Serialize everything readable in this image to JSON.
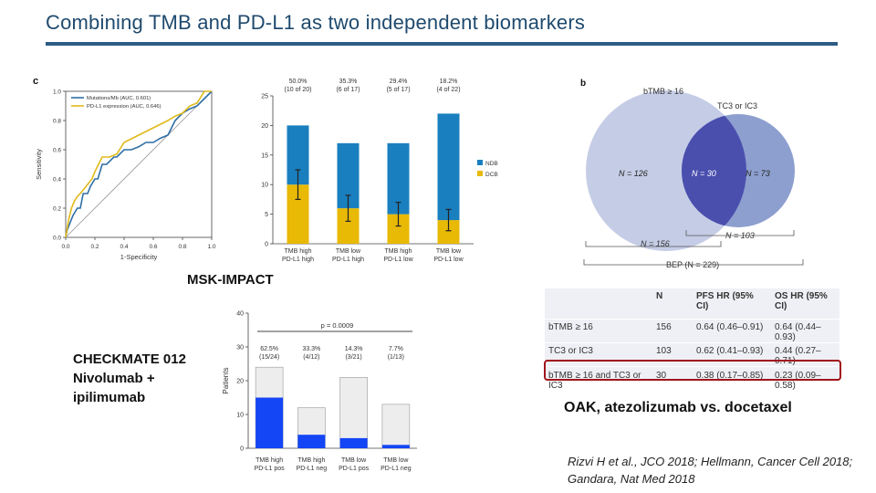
{
  "slide": {
    "title": "Combining TMB and PD-L1 as two independent biomarkers",
    "msk_label": "MSK-IMPACT",
    "checkmate_label": [
      "CHECKMATE 012",
      "Nivolumab +",
      "ipilimumab"
    ],
    "oak_label": "OAK, atezolizumab vs. docetaxel",
    "citation": [
      "Rizvi H et al., JCO 2018; Hellmann, Cancer Cell 2018;",
      "Gandara, Nat Med 2018"
    ]
  },
  "roc_panel": {
    "panel_letter": "c",
    "legend": [
      "Mutations/Mb (AUC, 0.601)",
      "PD-L1 expression (AUC, 0.646)"
    ],
    "colors": {
      "tmb": "#2e6da4",
      "pdl1": "#e0b91a"
    }
  },
  "venn_panel": {
    "panel_letter": "b",
    "left_title": "bTMB ≥ 16",
    "right_title": "TC3 or IC3",
    "left_only": "N = 126",
    "overlap": "N = 30",
    "right_only": "N = 73",
    "left_total": "N = 156",
    "right_total": "N = 103",
    "bep": "BEP (N = 229)",
    "colors": {
      "left": "#c5cde6",
      "right": "#8d9fcf",
      "overlap": "#4a4fae"
    }
  },
  "oak_table": {
    "headers": [
      "",
      "N",
      "PFS HR (95% CI)",
      "OS HR (95% CI)"
    ],
    "rows": [
      {
        "group": "bTMB ≥ 16",
        "n": "156",
        "pfs": "0.64 (0.46–0.91)",
        "os": "0.64 (0.44–0.93)"
      },
      {
        "group": "TC3 or IC3",
        "n": "103",
        "pfs": "0.62 (0.41–0.93)",
        "os": "0.44 (0.27–0.71)"
      },
      {
        "group": "bTMB ≥ 16 and TC3 or IC3",
        "n": "30",
        "pfs": "0.38 (0.17–0.85)",
        "os": "0.23 (0.09–0.58)"
      }
    ]
  },
  "chart_data": [
    {
      "type": "line",
      "panel": "c",
      "xlabel": "1-Specificity",
      "ylabel": "Sensitivity",
      "xlim": [
        0,
        1
      ],
      "ylim": [
        0,
        1
      ],
      "xticks": [
        "0.0",
        "0.2",
        "0.4",
        "0.6",
        "0.8",
        "1.0"
      ],
      "yticks": [
        "0.0",
        "0.2",
        "0.4",
        "0.6",
        "0.8",
        "1.0"
      ],
      "series": [
        {
          "name": "Mutations/Mb (AUC, 0.601)",
          "x": [
            0,
            0.01,
            0.03,
            0.05,
            0.08,
            0.1,
            0.12,
            0.15,
            0.17,
            0.2,
            0.22,
            0.25,
            0.28,
            0.3,
            0.33,
            0.35,
            0.38,
            0.4,
            0.45,
            0.5,
            0.55,
            0.6,
            0.65,
            0.7,
            0.75,
            0.8,
            0.85,
            0.9,
            0.95,
            1.0
          ],
          "y": [
            0,
            0.05,
            0.1,
            0.15,
            0.2,
            0.2,
            0.3,
            0.3,
            0.35,
            0.4,
            0.4,
            0.5,
            0.5,
            0.52,
            0.55,
            0.55,
            0.58,
            0.6,
            0.6,
            0.62,
            0.65,
            0.65,
            0.68,
            0.7,
            0.8,
            0.85,
            0.88,
            0.9,
            0.95,
            1.0
          ]
        },
        {
          "name": "PD-L1 expression (AUC, 0.646)",
          "x": [
            0,
            0.02,
            0.04,
            0.06,
            0.08,
            0.1,
            0.14,
            0.18,
            0.2,
            0.25,
            0.3,
            0.35,
            0.4,
            0.5,
            0.6,
            0.7,
            0.75,
            0.8,
            0.85,
            0.9,
            0.95,
            1.0
          ],
          "y": [
            0,
            0.12,
            0.2,
            0.25,
            0.28,
            0.3,
            0.35,
            0.4,
            0.45,
            0.55,
            0.55,
            0.57,
            0.65,
            0.7,
            0.75,
            0.8,
            0.83,
            0.85,
            0.9,
            0.92,
            1.0,
            1.0
          ]
        }
      ]
    },
    {
      "type": "bar",
      "panel": "msk-impact",
      "categories": [
        [
          "TMB high",
          "PD-L1 high"
        ],
        [
          "TMB low",
          "PD-L1 high"
        ],
        [
          "TMB high",
          "PD-L1 low"
        ],
        [
          "TMB low",
          "PD-L1 low"
        ]
      ],
      "series": [
        {
          "name": "DCB",
          "values": [
            10,
            6,
            5,
            4
          ],
          "color": "#e8b905"
        },
        {
          "name": "NDB",
          "values": [
            10,
            11,
            12,
            18
          ],
          "color": "#1a7fbf"
        }
      ],
      "error": [
        2.5,
        2.2,
        2.0,
        1.8
      ],
      "annotations": [
        [
          "50.0%",
          "(10 of 20)"
        ],
        [
          "35.3%",
          "(6 of 17)"
        ],
        [
          "29.4%",
          "(5 of 17)"
        ],
        [
          "18.2%",
          "(4 of 22)"
        ]
      ],
      "ylim": [
        0,
        25
      ],
      "yticks": [
        "0",
        "5",
        "10",
        "15",
        "20",
        "25"
      ],
      "legend": [
        "NDB",
        "DCB"
      ]
    },
    {
      "type": "bar",
      "panel": "checkmate-012",
      "categories": [
        [
          "TMB high",
          "PD-L1 pos"
        ],
        [
          "TMB high",
          "PD-L1 neg"
        ],
        [
          "TMB low",
          "PD-L1 pos"
        ],
        [
          "TMB low",
          "PD-L1 neg"
        ]
      ],
      "series": [
        {
          "name": "responders",
          "values": [
            15,
            4,
            3,
            1
          ],
          "color": "#1446f5"
        },
        {
          "name": "total",
          "values": [
            24,
            12,
            21,
            13
          ],
          "color": "#ededed"
        }
      ],
      "annotations": [
        [
          "62.5%",
          "(15/24)"
        ],
        [
          "33.3%",
          "(4/12)"
        ],
        [
          "14.3%",
          "(3/21)"
        ],
        [
          "7.7%",
          "(1/13)"
        ]
      ],
      "pvalue": "p = 0.0009",
      "ylabel": "Patients",
      "ylim": [
        0,
        40
      ],
      "yticks": [
        "0",
        "10",
        "20",
        "30",
        "40"
      ]
    }
  ]
}
